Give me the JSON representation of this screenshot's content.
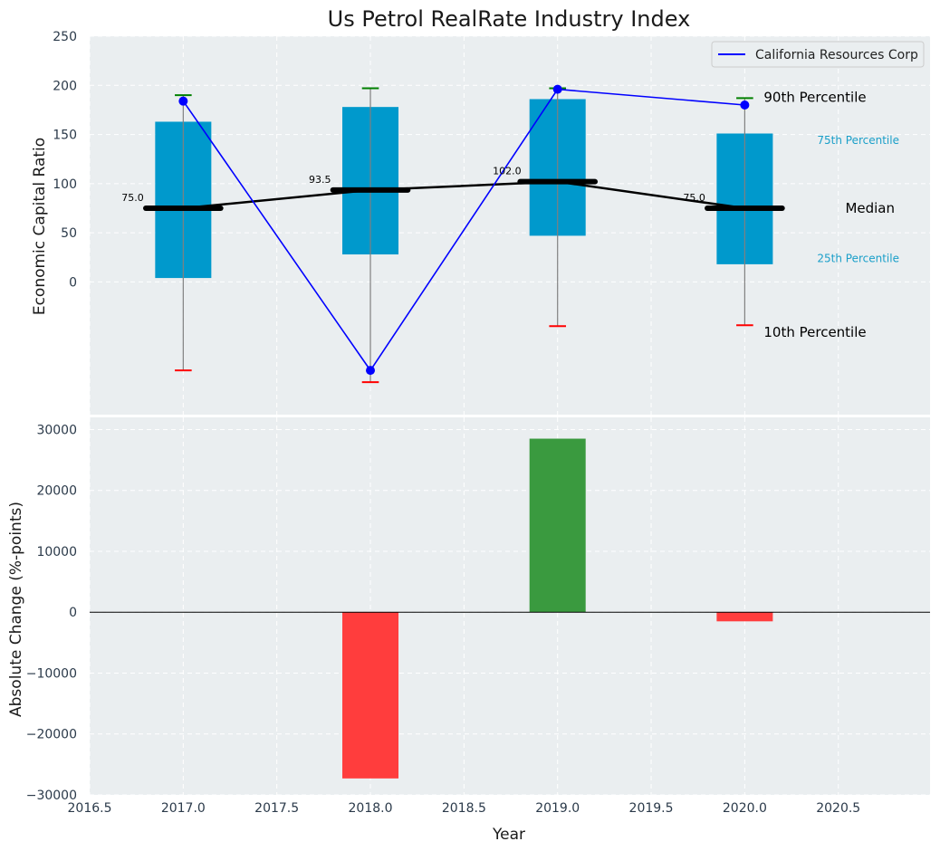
{
  "colors": {
    "panel_bg": "#eaeef0",
    "box": "#0099cc",
    "median": "#000000",
    "company": "#0000ff",
    "p90_cap": "#008000",
    "p10_cap": "#ff0000",
    "bar_up": "#3a9a3f",
    "bar_down": "#ff3d3d",
    "whisker": "#808080"
  },
  "chart_data": [
    {
      "type": "box",
      "title": "Us Petrol RealRate Industry Index",
      "xlabel": "",
      "ylabel": "Economic Capital Ratio",
      "ylim": [
        -135,
        250
      ],
      "yticks": [
        0,
        50,
        100,
        150,
        200,
        250
      ],
      "ytick_labels": [
        "0",
        "50",
        "100",
        "150",
        "200",
        "250"
      ],
      "grid": true,
      "legend": {
        "position": "top-right",
        "entries": [
          "California Resources Corp"
        ]
      },
      "years": [
        2017,
        2018,
        2019,
        2020
      ],
      "p10": [
        -90,
        -102,
        -45,
        -44
      ],
      "p25": [
        4,
        28,
        47,
        18
      ],
      "median": [
        75.0,
        93.5,
        102.0,
        75.0
      ],
      "median_labels": [
        "75.0",
        "93.5",
        "102.0",
        "75.0"
      ],
      "p75": [
        163,
        178,
        186,
        151
      ],
      "p90": [
        190,
        197,
        197,
        187
      ],
      "company": {
        "name": "California Resources Corp",
        "values": [
          184,
          -90,
          196,
          180
        ]
      },
      "annotations": {
        "p90": "90th Percentile",
        "p75": "75th Percentile",
        "median": "Median",
        "p25": "25th Percentile",
        "p10": "10th Percentile"
      }
    },
    {
      "type": "bar",
      "xlabel": "Year",
      "ylabel": "Absolute Change (%-points)",
      "ylim": [
        -30000,
        32000
      ],
      "yticks": [
        -30000,
        -20000,
        -10000,
        0,
        10000,
        20000,
        30000
      ],
      "ytick_labels": [
        "−30000",
        "−20000",
        "−10000",
        "0",
        "10000",
        "20000",
        "30000"
      ],
      "xlim": [
        2016.5,
        2020.99
      ],
      "xticks": [
        2016.5,
        2017.0,
        2017.5,
        2018.0,
        2018.5,
        2019.0,
        2019.5,
        2020.0,
        2020.5
      ],
      "xtick_labels": [
        "2016.5",
        "2017.0",
        "2017.5",
        "2018.0",
        "2018.5",
        "2019.0",
        "2019.5",
        "2020.0",
        "2020.5"
      ],
      "grid": true,
      "x": [
        2018,
        2019,
        2020
      ],
      "values": [
        -27300,
        28500,
        -1500
      ]
    }
  ]
}
